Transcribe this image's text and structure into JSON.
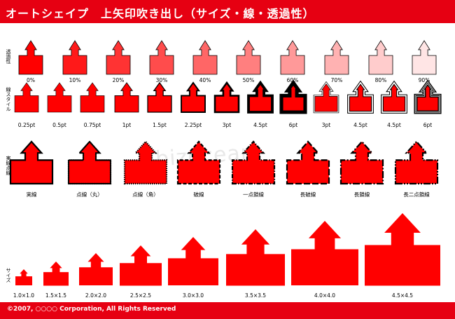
{
  "title": "オートシェイプ　上矢印吹き出し（サイズ・線・透過性）",
  "footer": "©2007, ○○○○ Corporation, All Rights Reserved",
  "watermark": "bizocean",
  "colors": {
    "brand": "#e60012",
    "fill": "#ff0000"
  },
  "rows": {
    "transparency": {
      "label": "透過性",
      "items": [
        {
          "caption": "0%",
          "transparency": 0
        },
        {
          "caption": "10%",
          "transparency": 10
        },
        {
          "caption": "20%",
          "transparency": 20
        },
        {
          "caption": "30%",
          "transparency": 30
        },
        {
          "caption": "40%",
          "transparency": 40
        },
        {
          "caption": "50%",
          "transparency": 50
        },
        {
          "caption": "60%",
          "transparency": 60
        },
        {
          "caption": "70%",
          "transparency": 70
        },
        {
          "caption": "80%",
          "transparency": 80
        },
        {
          "caption": "90%",
          "transparency": 90
        }
      ]
    },
    "line_style": {
      "label": "線スタイル",
      "items": [
        {
          "caption": "0.25pt",
          "weight_pt": 0.25,
          "style": "single"
        },
        {
          "caption": "0.5pt",
          "weight_pt": 0.5,
          "style": "single"
        },
        {
          "caption": "0.75pt",
          "weight_pt": 0.75,
          "style": "single"
        },
        {
          "caption": "1pt",
          "weight_pt": 1,
          "style": "single"
        },
        {
          "caption": "1.5pt",
          "weight_pt": 1.5,
          "style": "single"
        },
        {
          "caption": "2.25pt",
          "weight_pt": 2.25,
          "style": "single"
        },
        {
          "caption": "3pt",
          "weight_pt": 3,
          "style": "single"
        },
        {
          "caption": "4.5pt",
          "weight_pt": 4.5,
          "style": "single"
        },
        {
          "caption": "6pt",
          "weight_pt": 6,
          "style": "single"
        },
        {
          "caption": "3pt",
          "weight_pt": 3,
          "style": "double"
        },
        {
          "caption": "4.5pt",
          "weight_pt": 4.5,
          "style": "thick-thin"
        },
        {
          "caption": "4.5pt",
          "weight_pt": 4.5,
          "style": "thin-thick"
        },
        {
          "caption": "6pt",
          "weight_pt": 6,
          "style": "triple"
        }
      ]
    },
    "dash": {
      "label": "実線点線",
      "items": [
        {
          "caption": "実線",
          "dash": "solid"
        },
        {
          "caption": "点線（丸）",
          "dash": "round-dot"
        },
        {
          "caption": "点線（角）",
          "dash": "square-dot"
        },
        {
          "caption": "破線",
          "dash": "dash"
        },
        {
          "caption": "一点鎖線",
          "dash": "dash-dot"
        },
        {
          "caption": "長破線",
          "dash": "long-dash"
        },
        {
          "caption": "長鎖線",
          "dash": "long-dash-dot"
        },
        {
          "caption": "長二点鎖線",
          "dash": "long-dash-dot-dot"
        }
      ]
    },
    "size": {
      "label": "サイズ",
      "items": [
        {
          "caption": "1.0×1.0",
          "scale": 1.0
        },
        {
          "caption": "1.5×1.5",
          "scale": 1.5
        },
        {
          "caption": "2.0×2.0",
          "scale": 2.0
        },
        {
          "caption": "2.5×2.5",
          "scale": 2.5
        },
        {
          "caption": "3.0×3.0",
          "scale": 3.0
        },
        {
          "caption": "3.5×3.5",
          "scale": 3.5
        },
        {
          "caption": "4.0×4.0",
          "scale": 4.0
        },
        {
          "caption": "4.5×4.5",
          "scale": 4.5
        }
      ]
    }
  }
}
